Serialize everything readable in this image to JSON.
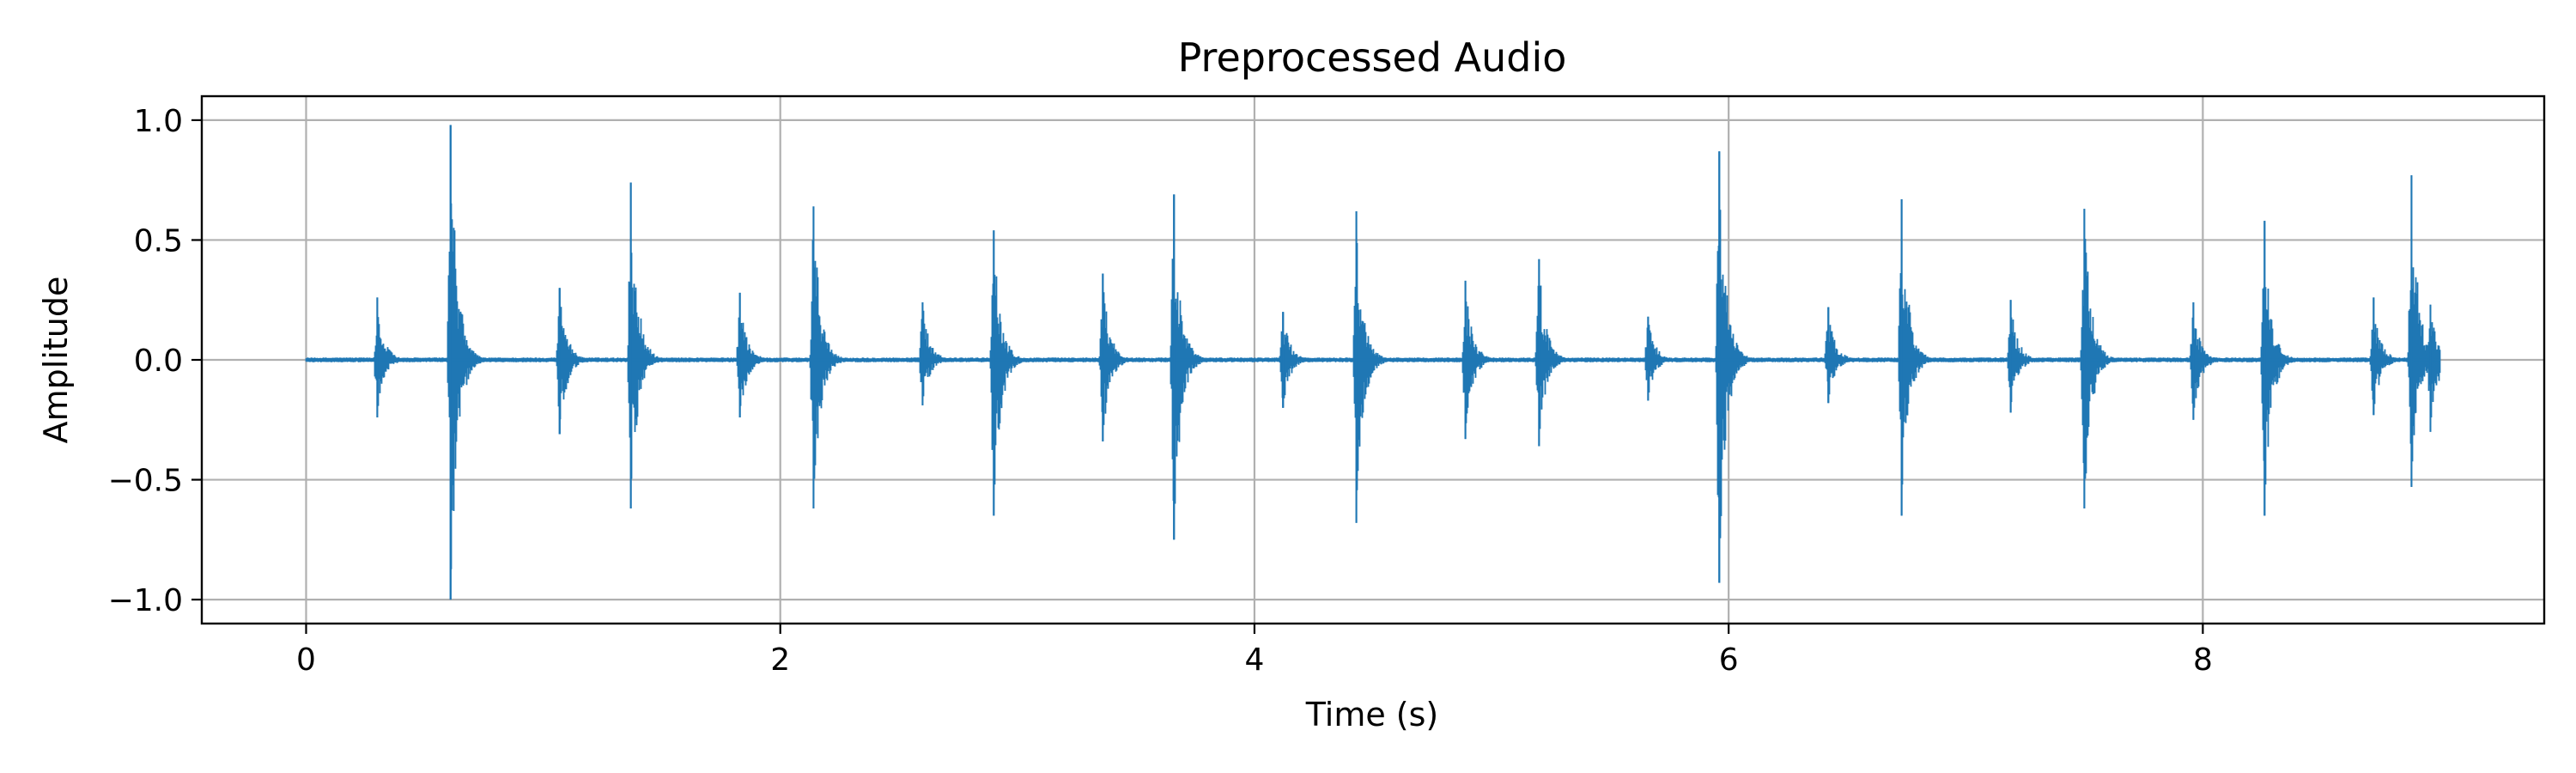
{
  "chart_data": {
    "type": "line",
    "title": "Preprocessed Audio",
    "xlabel": "Time (s)",
    "ylabel": "Amplitude",
    "xlim": [
      -0.44,
      9.44
    ],
    "ylim": [
      -1.1,
      1.1
    ],
    "x_ticks": [
      {
        "value": 0,
        "label": "0"
      },
      {
        "value": 2,
        "label": "2"
      },
      {
        "value": 4,
        "label": "4"
      },
      {
        "value": 6,
        "label": "6"
      },
      {
        "value": 8,
        "label": "8"
      }
    ],
    "y_ticks": [
      {
        "value": 1.0,
        "label": "1.0"
      },
      {
        "value": 0.5,
        "label": "0.5"
      },
      {
        "value": 0.0,
        "label": "0.0"
      },
      {
        "value": -0.5,
        "label": "−0.5"
      },
      {
        "value": -1.0,
        "label": "−1.0"
      }
    ],
    "grid": true,
    "series": [
      {
        "color": "#1f77b4",
        "duration": 9.0,
        "transients": [
          {
            "t": 0.3,
            "max": 0.26,
            "min": -0.24
          },
          {
            "t": 0.61,
            "max": 0.98,
            "min": -1.0
          },
          {
            "t": 1.07,
            "max": 0.3,
            "min": -0.31
          },
          {
            "t": 1.37,
            "max": 0.74,
            "min": -0.62
          },
          {
            "t": 1.83,
            "max": 0.28,
            "min": -0.24
          },
          {
            "t": 2.14,
            "max": 0.64,
            "min": -0.62
          },
          {
            "t": 2.6,
            "max": 0.24,
            "min": -0.19
          },
          {
            "t": 2.9,
            "max": 0.54,
            "min": -0.65
          },
          {
            "t": 3.36,
            "max": 0.36,
            "min": -0.34
          },
          {
            "t": 3.66,
            "max": 0.69,
            "min": -0.75
          },
          {
            "t": 4.12,
            "max": 0.2,
            "min": -0.2
          },
          {
            "t": 4.43,
            "max": 0.62,
            "min": -0.68
          },
          {
            "t": 4.89,
            "max": 0.33,
            "min": -0.33
          },
          {
            "t": 5.2,
            "max": 0.42,
            "min": -0.36
          },
          {
            "t": 5.66,
            "max": 0.18,
            "min": -0.17
          },
          {
            "t": 5.96,
            "max": 0.87,
            "min": -0.93
          },
          {
            "t": 6.42,
            "max": 0.22,
            "min": -0.18
          },
          {
            "t": 6.73,
            "max": 0.67,
            "min": -0.65
          },
          {
            "t": 7.19,
            "max": 0.25,
            "min": -0.22
          },
          {
            "t": 7.5,
            "max": 0.63,
            "min": -0.62
          },
          {
            "t": 7.96,
            "max": 0.24,
            "min": -0.25
          },
          {
            "t": 8.26,
            "max": 0.58,
            "min": -0.65
          },
          {
            "t": 8.72,
            "max": 0.26,
            "min": -0.23
          },
          {
            "t": 8.88,
            "max": 0.77,
            "min": -0.53
          },
          {
            "t": 8.96,
            "max": 0.23,
            "min": -0.3
          }
        ]
      }
    ]
  }
}
